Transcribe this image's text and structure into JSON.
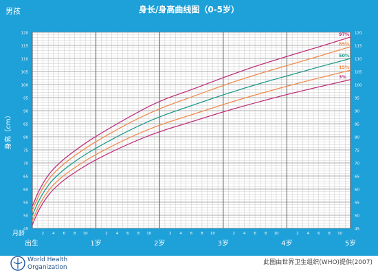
{
  "header": {
    "top_left": "男孩",
    "title": "身长/身高曲线图（0-5岁）"
  },
  "axes": {
    "ylabel": "身高（cm）",
    "corner_label": "月龄",
    "birth_label": "出生",
    "year_labels": [
      "1岁",
      "2岁",
      "3岁",
      "4岁",
      "5岁"
    ],
    "month_ticks": [
      "2",
      "4",
      "6",
      "8",
      "10",
      "2",
      "4",
      "6",
      "8",
      "10",
      "2",
      "4",
      "6",
      "8",
      "10",
      "2",
      "4",
      "6",
      "8",
      "10",
      "2",
      "4",
      "6",
      "8",
      "10"
    ]
  },
  "footer": {
    "org_line1": "World Health",
    "org_line2": "Organization",
    "credit": "此图由世界卫生组织(WHO)提供(2007)"
  },
  "colors": {
    "frame": "#1ea0d8",
    "grid": "#b9b9b9",
    "p3": "#c0307a",
    "p15": "#f08a4b",
    "p50": "#1f9a8a",
    "p85": "#f08a4b",
    "p97": "#c0307a"
  },
  "chart_data": {
    "type": "line",
    "x_unit": "months",
    "xlim": [
      0,
      60
    ],
    "ylim": [
      45,
      120
    ],
    "y_ticks": [
      45,
      50,
      55,
      60,
      65,
      70,
      75,
      80,
      85,
      90,
      95,
      100,
      105,
      110,
      115,
      120
    ],
    "x": [
      0,
      1,
      2,
      3,
      4,
      6,
      9,
      12,
      18,
      24,
      30,
      36,
      42,
      48,
      54,
      60
    ],
    "series": [
      {
        "name": "3%",
        "values": [
          46.3,
          51.1,
          54.7,
          57.6,
          60.0,
          63.6,
          67.7,
          71.3,
          77.2,
          82.1,
          85.7,
          89.6,
          93.0,
          96.2,
          99.1,
          101.9
        ]
      },
      {
        "name": "15%",
        "values": [
          47.9,
          52.7,
          56.4,
          59.3,
          61.7,
          65.4,
          69.6,
          73.3,
          79.5,
          84.6,
          88.4,
          92.4,
          96.0,
          99.4,
          102.5,
          105.5
        ]
      },
      {
        "name": "50%",
        "values": [
          49.9,
          54.7,
          58.4,
          61.4,
          63.9,
          67.6,
          72.0,
          75.7,
          82.3,
          87.8,
          91.9,
          96.1,
          99.9,
          103.3,
          106.7,
          110.0
        ]
      },
      {
        "name": "85%",
        "values": [
          51.8,
          56.7,
          60.5,
          63.5,
          66.0,
          69.8,
          74.3,
          78.2,
          85.1,
          90.9,
          95.2,
          99.7,
          103.7,
          107.3,
          110.8,
          114.5
        ]
      },
      {
        "name": "97%",
        "values": [
          53.4,
          58.4,
          62.2,
          65.3,
          67.8,
          71.6,
          76.2,
          80.2,
          87.4,
          93.8,
          98.0,
          102.7,
          107.0,
          110.8,
          114.4,
          118.2
        ]
      }
    ]
  }
}
